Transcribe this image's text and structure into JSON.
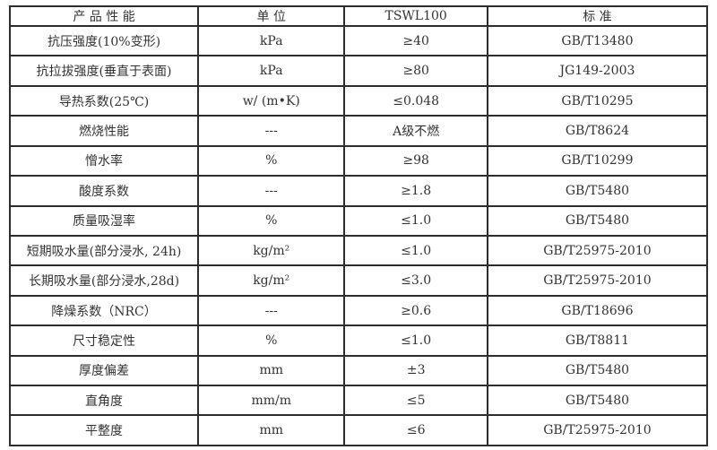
{
  "table": {
    "columns": {
      "property": "产 品 性 能",
      "unit": "单  位",
      "value": "TSWL100",
      "standard": "标  准"
    },
    "rows": [
      {
        "property": "抗压强度(10%变形)",
        "unit": "kPa",
        "value": "≥40",
        "standard": "GB/T13480"
      },
      {
        "property": "抗拉拔强度(垂直于表面)",
        "unit": "kPa",
        "value": "≥80",
        "standard": "JG149-2003"
      },
      {
        "property": "导热系数(25℃)",
        "unit": "w/ (m•K)",
        "value": "≤0.048",
        "standard": "GB/T10295"
      },
      {
        "property": "燃烧性能",
        "unit": "---",
        "value": "A级不燃",
        "standard": "GB/T8624"
      },
      {
        "property": "憎水率",
        "unit": "%",
        "value": "≥98",
        "standard": "GB/T10299"
      },
      {
        "property": "酸度系数",
        "unit": "---",
        "value": "≥1.8",
        "standard": "GB/T5480"
      },
      {
        "property": "质量吸湿率",
        "unit": "%",
        "value": "≤1.0",
        "standard": "GB/T5480"
      },
      {
        "property": "短期吸水量(部分浸水, 24h)",
        "unit": "kg/m²",
        "value": "≤1.0",
        "standard": "GB/T25975-2010"
      },
      {
        "property": "长期吸水量(部分浸水,28d)",
        "unit": "kg/m²",
        "value": "≤3.0",
        "standard": "GB/T25975-2010"
      },
      {
        "property": "降燥系数（NRC）",
        "unit": "---",
        "value": "≥0.6",
        "standard": "GB/T18696"
      },
      {
        "property": "尺寸稳定性",
        "unit": "%",
        "value": "≤1.0",
        "standard": "GB/T8811"
      },
      {
        "property": "厚度偏差",
        "unit": "mm",
        "value": "±3",
        "standard": "GB/T5480"
      },
      {
        "property": "直角度",
        "unit": "mm/m",
        "value": "≤5",
        "standard": "GB/T5480"
      },
      {
        "property": "平整度",
        "unit": "mm",
        "value": "≤6",
        "standard": "GB/T25975-2010"
      }
    ]
  },
  "colors": {
    "border": "#2d2d2d",
    "text": "#333333",
    "background": "#ffffff"
  }
}
